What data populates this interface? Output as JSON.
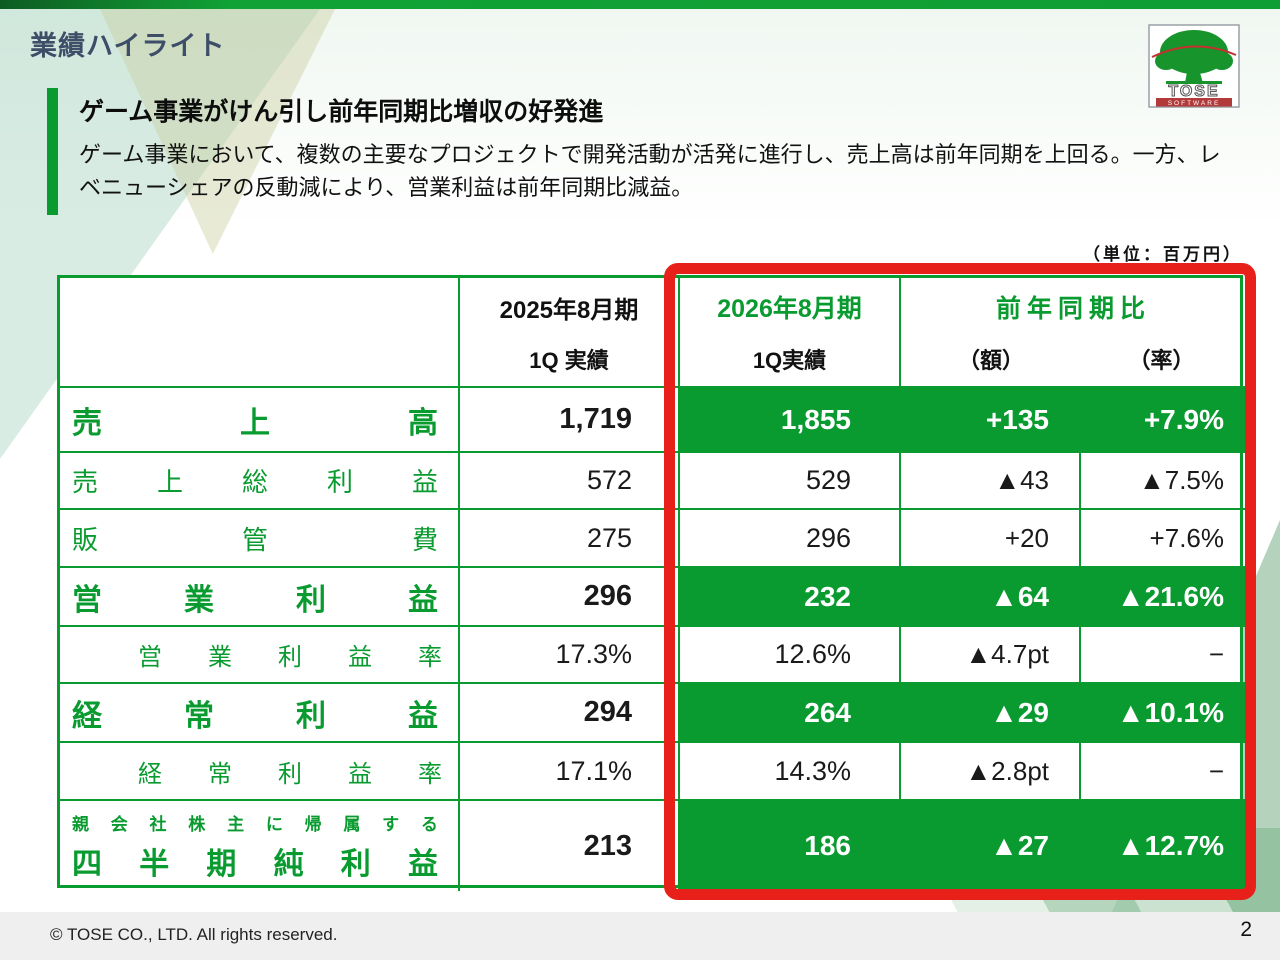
{
  "slide": {
    "title": "業績ハイライト",
    "unit_note": "（単位：百万円）",
    "footer_copyright": "© TOSE CO., LTD. All rights reserved.",
    "page_number": "2"
  },
  "logo": {
    "company": "TOSE",
    "subtitle": "SOFTWARE"
  },
  "headline": {
    "title": "ゲーム事業がけん引し前年同期比増収の好発進",
    "body": "ゲーム事業において、複数の主要なプロジェクトで開発活動が活発に進行し、売上高は前年同期を上回る。一方、レベニューシェアの反動減により、営業利益は前年同期比減益。"
  },
  "table": {
    "headers": {
      "prev_year": "2025年8月期",
      "prev_sub": "1Q 実績",
      "curr_year": "2026年8月期",
      "curr_sub": "1Q実績",
      "yoy_title": "前年同期比",
      "yoy_amount": "（額）",
      "yoy_rate": "（率）"
    },
    "rows": [
      {
        "label": "売上高",
        "prev": "1,719",
        "curr": "1,855",
        "amount": "+135",
        "rate": "+7.9%",
        "highlight": true,
        "indent": false
      },
      {
        "label": "売上総利益",
        "prev": "572",
        "curr": "529",
        "amount": "▲43",
        "rate": "▲7.5%",
        "highlight": false,
        "indent": false
      },
      {
        "label": "販管費",
        "prev": "275",
        "curr": "296",
        "amount": "+20",
        "rate": "+7.6%",
        "highlight": false,
        "indent": false
      },
      {
        "label": "営業利益",
        "prev": "296",
        "curr": "232",
        "amount": "▲64",
        "rate": "▲21.6%",
        "highlight": true,
        "indent": false
      },
      {
        "label": "営業利益率",
        "prev": "17.3%",
        "curr": "12.6%",
        "amount": "▲4.7pt",
        "rate": "−",
        "highlight": false,
        "indent": true
      },
      {
        "label": "経常利益",
        "prev": "294",
        "curr": "264",
        "amount": "▲29",
        "rate": "▲10.1%",
        "highlight": true,
        "indent": false
      },
      {
        "label": "経常利益率",
        "prev": "17.1%",
        "curr": "14.3%",
        "amount": "▲2.8pt",
        "rate": "−",
        "highlight": false,
        "indent": true
      },
      {
        "label": "四半期純利益",
        "label_note": "親会社株主に帰属する",
        "prev": "213",
        "curr": "186",
        "amount": "▲27",
        "rate": "▲12.7%",
        "highlight": true,
        "indent": false
      }
    ]
  },
  "colors": {
    "brand_green": "#0a9b30",
    "frame_red": "#e7211a",
    "title_navy": "#3e4d68"
  }
}
